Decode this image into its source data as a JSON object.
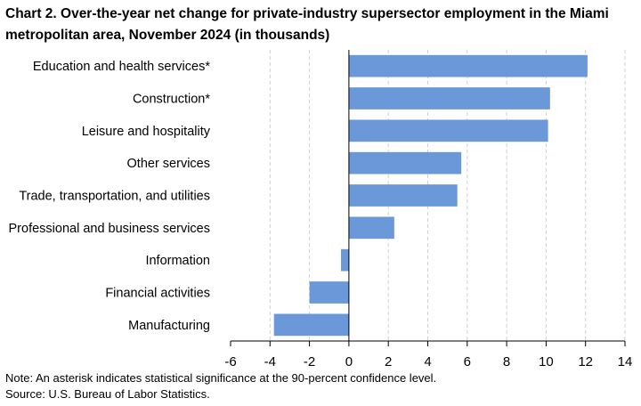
{
  "chart_data": {
    "type": "bar",
    "orientation": "horizontal",
    "title": "Chart 2. Over-the-year net change for private-industry supersector employment in the Miami metropolitan area, November 2024 (in thousands)",
    "categories": [
      "Education and health services*",
      "Construction*",
      "Leisure and hospitality",
      "Other services",
      "Trade, transportation, and utilities",
      "Professional and business services",
      "Information",
      "Financial activities",
      "Manufacturing"
    ],
    "values": [
      12.1,
      10.2,
      10.1,
      5.7,
      5.5,
      2.3,
      -0.4,
      -2.0,
      -3.8
    ],
    "xlim": [
      -6,
      14
    ],
    "xticks": [
      "-6",
      "-4",
      "-2",
      "0",
      "2",
      "4",
      "6",
      "8",
      "10",
      "12",
      "14"
    ],
    "xtick_values": [
      -6,
      -4,
      -2,
      0,
      2,
      4,
      6,
      8,
      10,
      12,
      14
    ],
    "xlabel": "",
    "ylabel": "",
    "grid": "vertical dashed",
    "bar_color": "#6a98d8"
  },
  "footnotes": {
    "note": "Note: An asterisk indicates statistical significance at the 90-percent confidence level.",
    "source": "Source: U.S. Bureau of Labor Statistics."
  }
}
